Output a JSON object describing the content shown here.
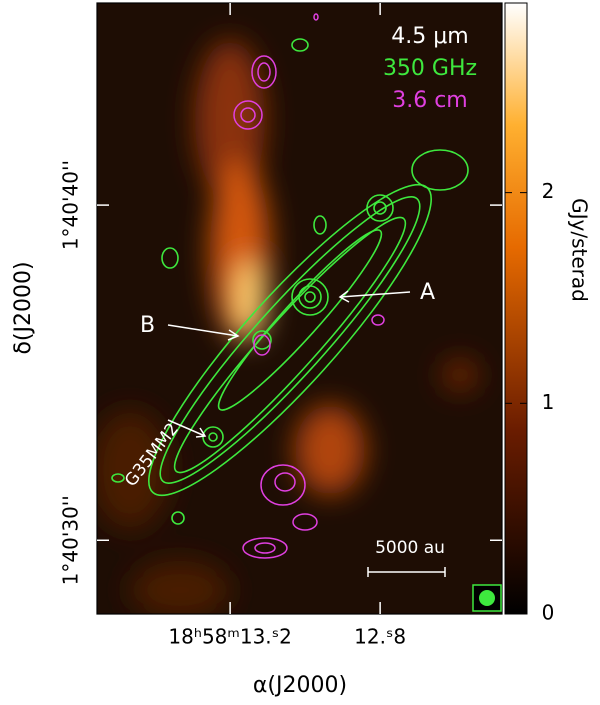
{
  "chart_data": {
    "type": "image",
    "legend": [
      {
        "name": "4.5 μm",
        "color": "#ffffff"
      },
      {
        "name": "350 GHz",
        "color": "#3ee83e"
      },
      {
        "name": "3.6 cm",
        "color": "#e040e0"
      }
    ],
    "x_label": "α(J2000)",
    "y_label": "δ(J2000)",
    "colorbar_label": "GJy/sterad",
    "xlim": [
      13.555,
      12.475
    ],
    "xticks": [
      {
        "value": 13.2,
        "label": "18ʰ58ᵐ13.ˢ2"
      },
      {
        "value": 12.8,
        "label": "12.ˢ8"
      }
    ],
    "ylim": [
      27.8,
      46.03
    ],
    "yticks": [
      {
        "value": 40,
        "label": "1°40'40''"
      },
      {
        "value": 30,
        "label": "1°40'30''"
      }
    ],
    "clim": [
      0,
      2.9
    ],
    "cticks": [
      0,
      1,
      2
    ],
    "annotations": [
      "A",
      "B",
      "G35MM2",
      "5000 au"
    ]
  }
}
